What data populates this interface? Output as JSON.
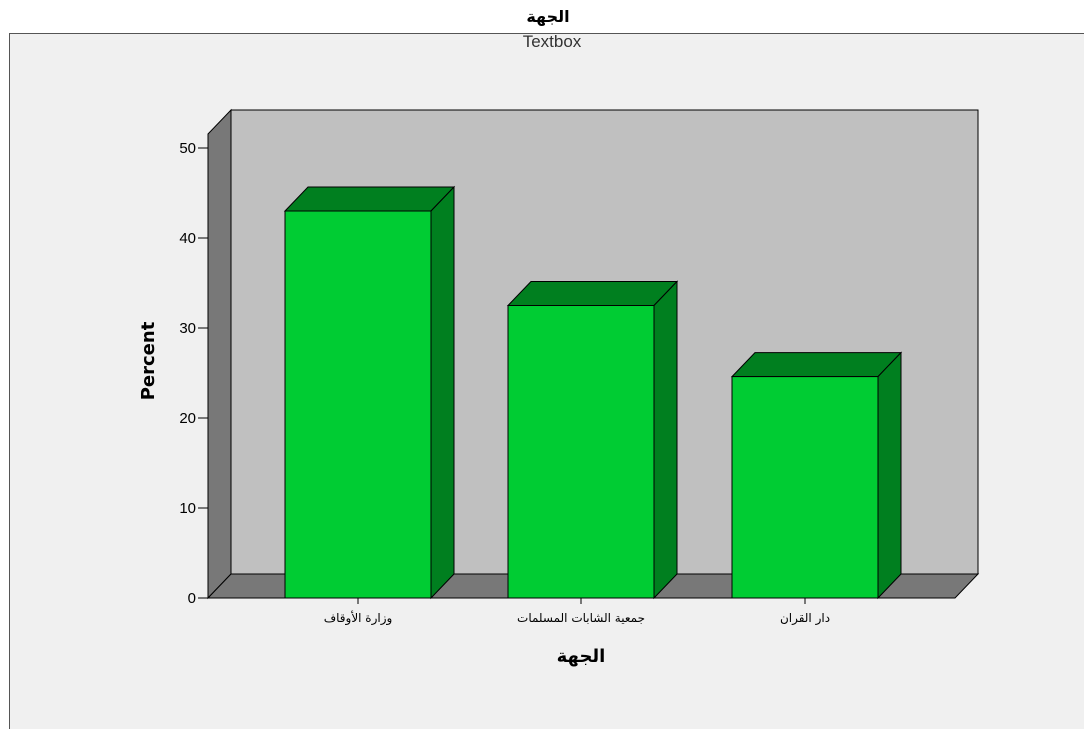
{
  "chart_data": {
    "type": "bar",
    "title": "الجهة",
    "subtitle": "Textbox",
    "xlabel": "الجهة",
    "ylabel": "Percent",
    "categories": [
      "وزارة الأوقاف",
      "جمعية الشابات المسلمات",
      "دار القران"
    ],
    "values": [
      43,
      32.5,
      24.6
    ],
    "ylim": [
      0,
      50
    ],
    "yticks": [
      0,
      10,
      20,
      30,
      40,
      50
    ],
    "grid": false,
    "legend": "none",
    "three_d": true
  },
  "colors": {
    "page_background": "#ffffff",
    "frame_background": "#f0f0f0",
    "plot_background": "#c0c0c0",
    "side_wall": "#787878",
    "floor": "#787878",
    "bar_front": "#00cc33",
    "bar_top": "#007f1f",
    "bar_side": "#007f1f",
    "outline": "#000000"
  }
}
